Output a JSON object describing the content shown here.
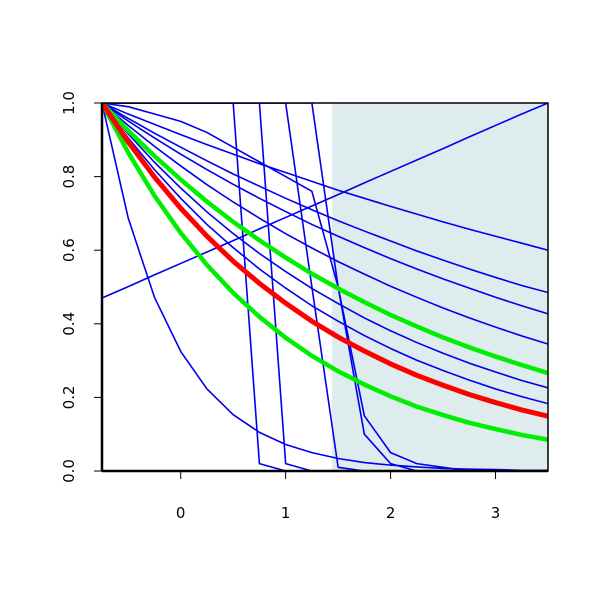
{
  "chart_data": {
    "type": "line",
    "x": [
      -0.75,
      -0.5,
      -0.25,
      0,
      0.25,
      0.5,
      0.75,
      1,
      1.25,
      1.5,
      1.75,
      2,
      2.25,
      2.5,
      2.75,
      3,
      3.25,
      3.5
    ],
    "xlim": [
      -0.75,
      3.5
    ],
    "ylim": [
      0,
      1
    ],
    "xticks": [
      0,
      1,
      2,
      3
    ],
    "yticks": [
      {
        "value": 0,
        "label": "0.0"
      },
      {
        "value": 0.2,
        "label": "0.2"
      },
      {
        "value": 0.4,
        "label": "0.4"
      },
      {
        "value": 0.6,
        "label": "0.6"
      },
      {
        "value": 0.8,
        "label": "0.8"
      },
      {
        "value": 1,
        "label": "1.0"
      }
    ],
    "shaded_region": {
      "xlim": [
        1.44,
        3.5
      ],
      "color": "#deeced"
    },
    "series": [
      {
        "color": "#0000ee",
        "linewidth": 1.6,
        "values": [
          1,
          0.97,
          0.942,
          0.914,
          0.887,
          0.861,
          0.835,
          0.811,
          0.787,
          0.763,
          0.741,
          0.719,
          0.698,
          0.677,
          0.657,
          0.638,
          0.619,
          0.6
        ]
      },
      {
        "color": "#0000ee",
        "linewidth": 1.6,
        "values": [
          1,
          0.958,
          0.918,
          0.88,
          0.843,
          0.807,
          0.774,
          0.741,
          0.71,
          0.68,
          0.652,
          0.625,
          0.598,
          0.573,
          0.549,
          0.526,
          0.504,
          0.485
        ]
      },
      {
        "color": "#0000ee",
        "linewidth": 1.6,
        "values": [
          1,
          0.951,
          0.905,
          0.861,
          0.819,
          0.779,
          0.741,
          0.705,
          0.67,
          0.638,
          0.607,
          0.577,
          0.549,
          0.522,
          0.497,
          0.472,
          0.449,
          0.427
        ]
      },
      {
        "color": "#0000ee",
        "linewidth": 1.6,
        "values": [
          1,
          0.939,
          0.882,
          0.829,
          0.778,
          0.731,
          0.687,
          0.645,
          0.606,
          0.569,
          0.535,
          0.502,
          0.472,
          0.443,
          0.416,
          0.391,
          0.367,
          0.345
        ]
      },
      {
        "color": "#0000ee",
        "linewidth": 1.6,
        "values": [
          1,
          0.916,
          0.839,
          0.769,
          0.704,
          0.645,
          0.591,
          0.542,
          0.496,
          0.455,
          0.416,
          0.381,
          0.349,
          0.32,
          0.293,
          0.269,
          0.246,
          0.226
        ]
      },
      {
        "color": "#0000ee",
        "linewidth": 1.6,
        "values": [
          1,
          0.905,
          0.819,
          0.741,
          0.67,
          0.607,
          0.549,
          0.497,
          0.449,
          0.407,
          0.368,
          0.333,
          0.301,
          0.273,
          0.247,
          0.223,
          0.202,
          0.183
        ]
      },
      {
        "color": "#0000ee",
        "linewidth": 1.6,
        "values": [
          1,
          0.687,
          0.472,
          0.325,
          0.223,
          0.153,
          0.105,
          0.072,
          0.05,
          0.034,
          0.023,
          0.016,
          0.011,
          0.007,
          0.005,
          0.004,
          0.002,
          0.002
        ]
      },
      {
        "color": "#0000ee",
        "linewidth": 1.6,
        "values": [
          0.47,
          0.501,
          0.533,
          0.564,
          0.595,
          0.626,
          0.658,
          0.689,
          0.72,
          0.751,
          0.783,
          0.814,
          0.845,
          0.876,
          0.908,
          0.939,
          0.97,
          1
        ]
      },
      {
        "color": "#0000ee",
        "linewidth": 1.6,
        "values": [
          1,
          1,
          1,
          1,
          1,
          1,
          0.02,
          0,
          0,
          0,
          0,
          0,
          0,
          0,
          0,
          0,
          0,
          0
        ]
      },
      {
        "color": "#0000ee",
        "linewidth": 1.6,
        "values": [
          1,
          1,
          1,
          1,
          1,
          1,
          1,
          0.02,
          0,
          0,
          0,
          0,
          0,
          0,
          0,
          0,
          0,
          0
        ]
      },
      {
        "color": "#0000ee",
        "linewidth": 1.6,
        "values": [
          1,
          1,
          1,
          1,
          1,
          1,
          1,
          1,
          0.5,
          0.01,
          0,
          0,
          0,
          0,
          0,
          0,
          0,
          0
        ]
      },
      {
        "color": "#0000ee",
        "linewidth": 1.6,
        "values": [
          1,
          1,
          1,
          1,
          1,
          1,
          1,
          1,
          1,
          0.5,
          0.1,
          0.02,
          0,
          0,
          0,
          0,
          0,
          0
        ]
      },
      {
        "color": "#0000ee",
        "linewidth": 1.6,
        "values": [
          1,
          0.99,
          0.97,
          0.95,
          0.92,
          0.88,
          0.84,
          0.8,
          0.76,
          0.5,
          0.15,
          0.05,
          0.02,
          0.01,
          0,
          0,
          0,
          0
        ]
      },
      {
        "color": "#00ee00",
        "linewidth": 4.5,
        "values": [
          1,
          0.925,
          0.856,
          0.792,
          0.732,
          0.677,
          0.627,
          0.58,
          0.536,
          0.496,
          0.459,
          0.424,
          0.393,
          0.363,
          0.336,
          0.311,
          0.288,
          0.266
        ]
      },
      {
        "color": "#00ee00",
        "linewidth": 4.5,
        "values": [
          1,
          0.865,
          0.748,
          0.647,
          0.56,
          0.484,
          0.419,
          0.362,
          0.313,
          0.271,
          0.235,
          0.203,
          0.175,
          0.152,
          0.131,
          0.114,
          0.098,
          0.085
        ]
      },
      {
        "color": "#ff0000",
        "linewidth": 5,
        "values": [
          1,
          0.894,
          0.799,
          0.714,
          0.638,
          0.57,
          0.51,
          0.456,
          0.407,
          0.364,
          0.326,
          0.291,
          0.26,
          0.233,
          0.208,
          0.186,
          0.166,
          0.149
        ]
      }
    ]
  }
}
